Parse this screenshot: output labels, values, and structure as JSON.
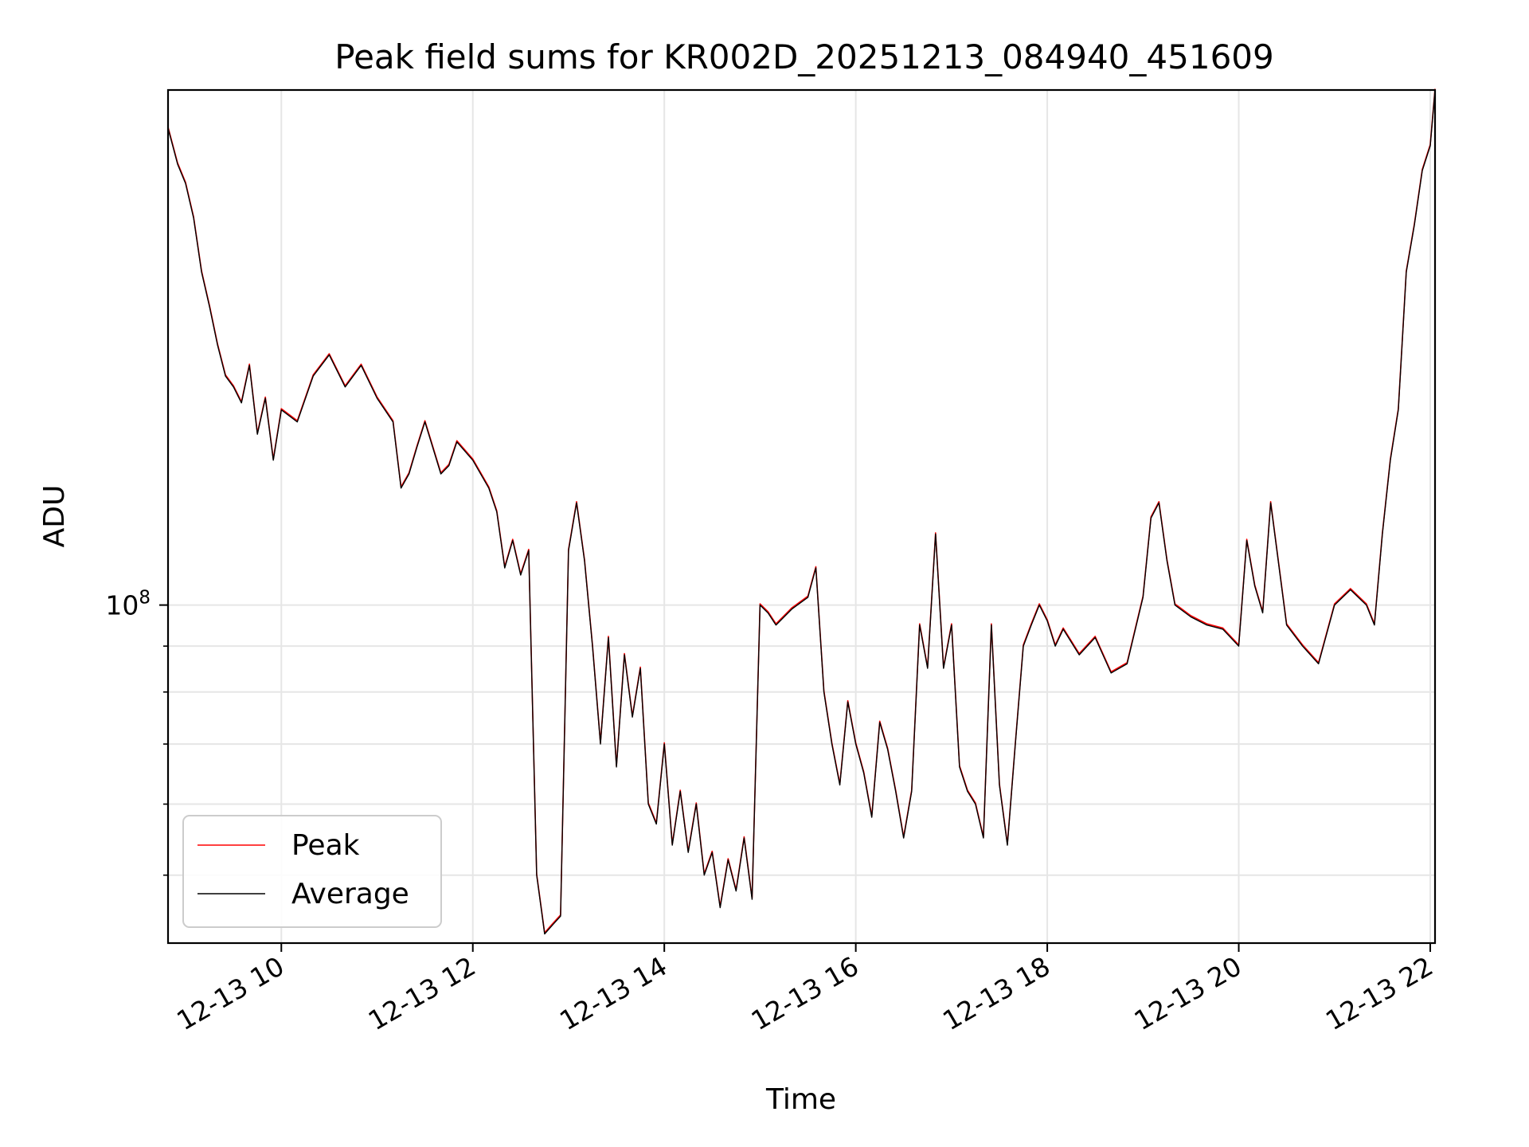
{
  "chart_data": {
    "type": "line",
    "title": "Peak field sums for KR002D_20251213_084940_451609",
    "xlabel": "Time",
    "ylabel": "ADU",
    "y_scale": "log",
    "ylim": [
      42000000,
      375000000
    ],
    "xlim": [
      "2025-12-13 08:49",
      "2025-12-13 22:03"
    ],
    "grid": true,
    "legend_position": "lower-left",
    "x_ticks": [
      {
        "value": "2025-12-13 10:00",
        "label": "12-13 10"
      },
      {
        "value": "2025-12-13 12:00",
        "label": "12-13 12"
      },
      {
        "value": "2025-12-13 14:00",
        "label": "12-13 14"
      },
      {
        "value": "2025-12-13 16:00",
        "label": "12-13 16"
      },
      {
        "value": "2025-12-13 18:00",
        "label": "12-13 18"
      },
      {
        "value": "2025-12-13 20:00",
        "label": "12-13 20"
      },
      {
        "value": "2025-12-13 22:00",
        "label": "12-13 22"
      }
    ],
    "y_ticks_major": [
      {
        "value": 100000000,
        "label": "10^8"
      }
    ],
    "y_ticks_minor": [
      50000000,
      60000000,
      70000000,
      80000000,
      90000000
    ],
    "series": [
      {
        "name": "Peak",
        "color": "#ff0000"
      },
      {
        "name": "Average",
        "color": "#000000"
      }
    ],
    "x": [
      "2025-12-13 08:49",
      "2025-12-13 08:55",
      "2025-12-13 09:00",
      "2025-12-13 09:05",
      "2025-12-13 09:10",
      "2025-12-13 09:15",
      "2025-12-13 09:20",
      "2025-12-13 09:25",
      "2025-12-13 09:30",
      "2025-12-13 09:35",
      "2025-12-13 09:40",
      "2025-12-13 09:45",
      "2025-12-13 09:50",
      "2025-12-13 09:55",
      "2025-12-13 10:00",
      "2025-12-13 10:10",
      "2025-12-13 10:20",
      "2025-12-13 10:30",
      "2025-12-13 10:40",
      "2025-12-13 10:50",
      "2025-12-13 11:00",
      "2025-12-13 11:10",
      "2025-12-13 11:15",
      "2025-12-13 11:20",
      "2025-12-13 11:25",
      "2025-12-13 11:30",
      "2025-12-13 11:40",
      "2025-12-13 11:45",
      "2025-12-13 11:50",
      "2025-12-13 12:00",
      "2025-12-13 12:10",
      "2025-12-13 12:15",
      "2025-12-13 12:20",
      "2025-12-13 12:25",
      "2025-12-13 12:30",
      "2025-12-13 12:35",
      "2025-12-13 12:40",
      "2025-12-13 12:45",
      "2025-12-13 12:50",
      "2025-12-13 12:55",
      "2025-12-13 13:00",
      "2025-12-13 13:05",
      "2025-12-13 13:10",
      "2025-12-13 13:15",
      "2025-12-13 13:20",
      "2025-12-13 13:25",
      "2025-12-13 13:30",
      "2025-12-13 13:35",
      "2025-12-13 13:40",
      "2025-12-13 13:45",
      "2025-12-13 13:50",
      "2025-12-13 13:55",
      "2025-12-13 14:00",
      "2025-12-13 14:05",
      "2025-12-13 14:10",
      "2025-12-13 14:15",
      "2025-12-13 14:20",
      "2025-12-13 14:25",
      "2025-12-13 14:30",
      "2025-12-13 14:35",
      "2025-12-13 14:40",
      "2025-12-13 14:45",
      "2025-12-13 14:50",
      "2025-12-13 14:55",
      "2025-12-13 15:00",
      "2025-12-13 15:05",
      "2025-12-13 15:10",
      "2025-12-13 15:20",
      "2025-12-13 15:30",
      "2025-12-13 15:35",
      "2025-12-13 15:40",
      "2025-12-13 15:45",
      "2025-12-13 15:50",
      "2025-12-13 15:55",
      "2025-12-13 16:00",
      "2025-12-13 16:05",
      "2025-12-13 16:10",
      "2025-12-13 16:15",
      "2025-12-13 16:20",
      "2025-12-13 16:25",
      "2025-12-13 16:30",
      "2025-12-13 16:35",
      "2025-12-13 16:40",
      "2025-12-13 16:45",
      "2025-12-13 16:50",
      "2025-12-13 16:55",
      "2025-12-13 17:00",
      "2025-12-13 17:05",
      "2025-12-13 17:10",
      "2025-12-13 17:15",
      "2025-12-13 17:20",
      "2025-12-13 17:25",
      "2025-12-13 17:30",
      "2025-12-13 17:35",
      "2025-12-13 17:40",
      "2025-12-13 17:45",
      "2025-12-13 17:50",
      "2025-12-13 17:55",
      "2025-12-13 18:00",
      "2025-12-13 18:05",
      "2025-12-13 18:10",
      "2025-12-13 18:20",
      "2025-12-13 18:30",
      "2025-12-13 18:40",
      "2025-12-13 18:50",
      "2025-12-13 19:00",
      "2025-12-13 19:05",
      "2025-12-13 19:10",
      "2025-12-13 19:15",
      "2025-12-13 19:20",
      "2025-12-13 19:30",
      "2025-12-13 19:40",
      "2025-12-13 19:50",
      "2025-12-13 20:00",
      "2025-12-13 20:05",
      "2025-12-13 20:10",
      "2025-12-13 20:15",
      "2025-12-13 20:20",
      "2025-12-13 20:30",
      "2025-12-13 20:40",
      "2025-12-13 20:50",
      "2025-12-13 21:00",
      "2025-12-13 21:10",
      "2025-12-13 21:20",
      "2025-12-13 21:25",
      "2025-12-13 21:30",
      "2025-12-13 21:35",
      "2025-12-13 21:40",
      "2025-12-13 21:45",
      "2025-12-13 21:50",
      "2025-12-13 21:55",
      "2025-12-13 22:00",
      "2025-12-13 22:03"
    ],
    "y": [
      340000000,
      310000000,
      295000000,
      270000000,
      235000000,
      215000000,
      195000000,
      180000000,
      175000000,
      168000000,
      185000000,
      155000000,
      170000000,
      145000000,
      165000000,
      160000000,
      180000000,
      190000000,
      175000000,
      185000000,
      170000000,
      160000000,
      135000000,
      140000000,
      150000000,
      160000000,
      140000000,
      143000000,
      152000000,
      145000000,
      135000000,
      127000000,
      110000000,
      118000000,
      108000000,
      115000000,
      50000000,
      43000000,
      44000000,
      45000000,
      115000000,
      130000000,
      112000000,
      90000000,
      70000000,
      92000000,
      66000000,
      88000000,
      75000000,
      85000000,
      60000000,
      57000000,
      70000000,
      54000000,
      62000000,
      53000000,
      60000000,
      50000000,
      53000000,
      46000000,
      52000000,
      48000000,
      55000000,
      47000000,
      100000000,
      98000000,
      95000000,
      99000000,
      102000000,
      110000000,
      80000000,
      70000000,
      63000000,
      78000000,
      70000000,
      65000000,
      58000000,
      74000000,
      69000000,
      62000000,
      55000000,
      62000000,
      95000000,
      85000000,
      120000000,
      85000000,
      95000000,
      66000000,
      62000000,
      60000000,
      55000000,
      95000000,
      63000000,
      54000000,
      70000000,
      90000000,
      95000000,
      100000000,
      96000000,
      90000000,
      94000000,
      88000000,
      92000000,
      84000000,
      86000000,
      102000000,
      125000000,
      130000000,
      112000000,
      100000000,
      97000000,
      95000000,
      94000000,
      90000000,
      118000000,
      105000000,
      98000000,
      130000000,
      95000000,
      90000000,
      86000000,
      100000000,
      104000000,
      100000000,
      95000000,
      120000000,
      145000000,
      165000000,
      235000000,
      265000000,
      305000000,
      325000000,
      375000000
    ]
  }
}
